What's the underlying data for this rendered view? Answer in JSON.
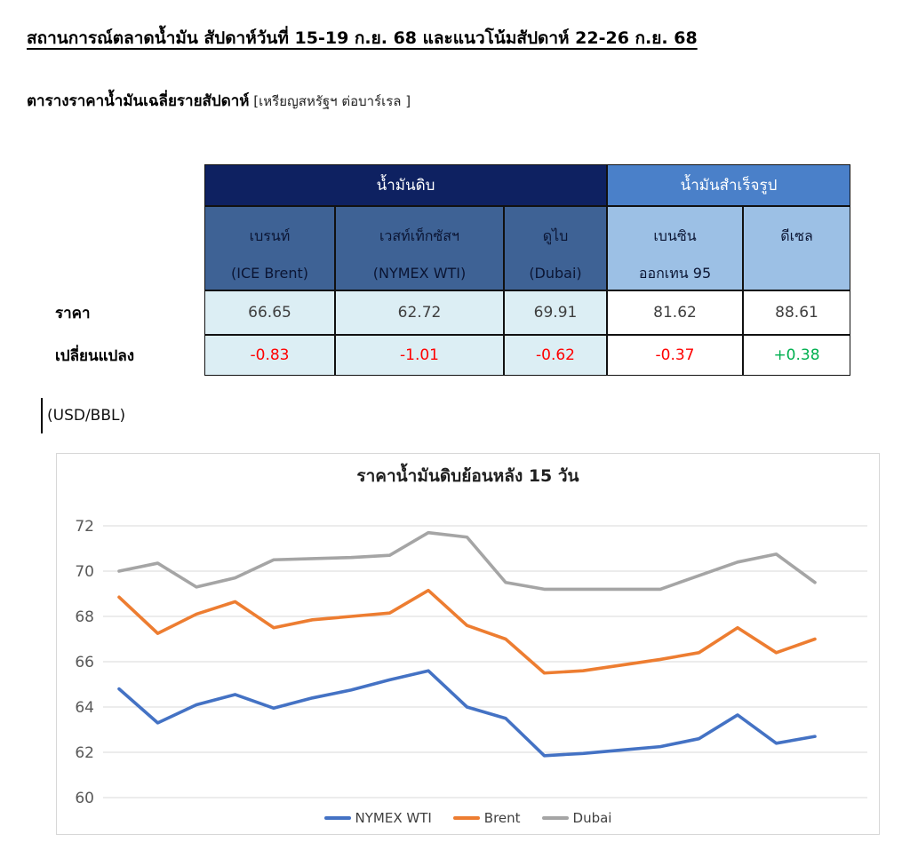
{
  "page": {
    "title": "สถานการณ์ตลาดน้ำมัน สัปดาห์วันที่ 15-19 ก.ย. 68 และแนวโน้มสัปดาห์ 22-26 ก.ย. 68",
    "subtitle_bold": "ตารางราคาน้ำมันเฉลี่ยรายสัปดาห์",
    "subtitle_note": " [เหรียญสหรัฐฯ ต่อบาร์เรล ]",
    "unit_label": "(USD/BBL)"
  },
  "table": {
    "group_headers": [
      {
        "label": "น้ำมันดิบ",
        "colspan": 3
      },
      {
        "label": "น้ำมันสำเร็จรูป",
        "colspan": 2
      }
    ],
    "columns": [
      {
        "line1": "เบรนท์",
        "line2": "(ICE Brent)"
      },
      {
        "line1": "เวสท์เท็กซัสฯ",
        "line2": "(NYMEX WTI)"
      },
      {
        "line1": "ดูไบ",
        "line2": "(Dubai)"
      },
      {
        "line1": "เบนซิน",
        "line2": "ออกเทน  95"
      },
      {
        "line1": "ดีเซล",
        "line2": ""
      }
    ],
    "rows": [
      {
        "label": "ราคา",
        "values": [
          "66.65",
          "62.72",
          "69.91",
          "81.62",
          "88.61"
        ]
      },
      {
        "label": "เปลี่ยนแปลง",
        "values": [
          "-0.83",
          "-1.01",
          "-0.62",
          "-0.37",
          "+0.38"
        ]
      }
    ],
    "colors": {
      "negative": "#ff0000",
      "positive": "#00b050"
    }
  },
  "chart_data": {
    "type": "line",
    "title": "ราคาน้ำมันดิบย้อนหลัง 15 วัน",
    "xlabel": "",
    "ylabel": "USD/BBL",
    "ylim": [
      60,
      72
    ],
    "yticks": [
      72,
      70,
      68,
      66,
      64,
      62,
      60
    ],
    "grid": true,
    "legend_position": "bottom",
    "series": [
      {
        "name": "NYMEX WTI",
        "color": "#4472C4",
        "values": [
          64.8,
          63.3,
          64.1,
          64.55,
          63.95,
          64.4,
          64.75,
          65.2,
          65.6,
          64.0,
          63.5,
          61.85,
          61.95,
          62.1,
          62.25,
          62.6,
          63.65,
          62.4,
          62.7
        ]
      },
      {
        "name": "Brent",
        "color": "#ED7D31",
        "values": [
          68.85,
          67.25,
          68.1,
          68.65,
          67.5,
          67.85,
          68.0,
          68.15,
          69.15,
          67.6,
          67.0,
          65.5,
          65.6,
          65.85,
          66.1,
          66.4,
          67.5,
          66.4,
          67.0
        ]
      },
      {
        "name": "Dubai",
        "color": "#A5A5A5",
        "values": [
          70.0,
          70.35,
          69.3,
          69.7,
          70.5,
          70.55,
          70.6,
          70.7,
          71.7,
          71.5,
          69.5,
          69.2,
          69.2,
          69.2,
          69.2,
          69.8,
          70.4,
          70.75,
          69.5
        ]
      }
    ]
  }
}
